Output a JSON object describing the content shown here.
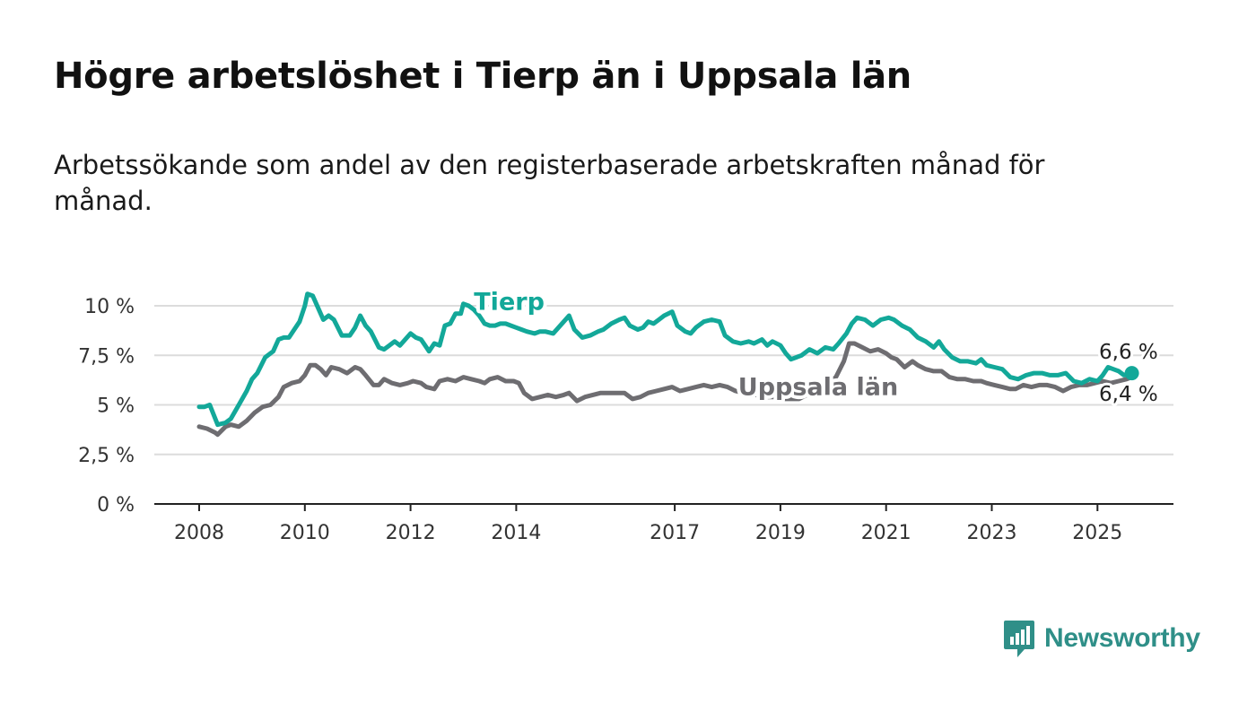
{
  "title": "Högre arbetslöshet i Tierp än i Uppsala län",
  "subtitle": "Arbetssökande som andel av den registerbaserade arbetskraften månad för månad.",
  "colors": {
    "tierp": "#13a899",
    "uppsala": "#6e6d71",
    "grid": "#dcdcdc",
    "axis": "#222222",
    "brand": "#2f8f88"
  },
  "logo": {
    "text": "Newsworthy",
    "icon": "chart-bubble-icon"
  },
  "chart_data": {
    "type": "line",
    "title": "Högre arbetslöshet i Tierp än i Uppsala län",
    "subtitle": "Arbetssökande som andel av den registerbaserade arbetskraften månad för månad.",
    "xlabel": "",
    "ylabel": "",
    "xlim": [
      2008,
      2025.7
    ],
    "ylim": [
      0,
      10
    ],
    "grid": true,
    "legend": "direct labels on lines",
    "y_ticks": [
      {
        "value": 0,
        "label": "0 %"
      },
      {
        "value": 2.5,
        "label": "2,5 %"
      },
      {
        "value": 5,
        "label": "5 %"
      },
      {
        "value": 7.5,
        "label": "7,5 %"
      },
      {
        "value": 10,
        "label": "10 %"
      }
    ],
    "x_ticks": [
      {
        "value": 2008,
        "label": "2008"
      },
      {
        "value": 2010,
        "label": "2010"
      },
      {
        "value": 2012,
        "label": "2012"
      },
      {
        "value": 2014,
        "label": "2014"
      },
      {
        "value": 2017,
        "label": "2017"
      },
      {
        "value": 2019,
        "label": "2019"
      },
      {
        "value": 2021,
        "label": "2021"
      },
      {
        "value": 2023,
        "label": "2023"
      },
      {
        "value": 2025,
        "label": "2025"
      }
    ],
    "series": [
      {
        "name": "Tierp",
        "label_at": [
          2013.2,
          9.8
        ],
        "end_label": "6,6 %",
        "points": [
          [
            2008.0,
            4.9
          ],
          [
            2008.1,
            4.9
          ],
          [
            2008.2,
            5.0
          ],
          [
            2008.35,
            4.0
          ],
          [
            2008.5,
            4.1
          ],
          [
            2008.6,
            4.3
          ],
          [
            2008.75,
            5.0
          ],
          [
            2008.9,
            5.7
          ],
          [
            2009.0,
            6.3
          ],
          [
            2009.1,
            6.6
          ],
          [
            2009.25,
            7.4
          ],
          [
            2009.4,
            7.7
          ],
          [
            2009.5,
            8.3
          ],
          [
            2009.6,
            8.4
          ],
          [
            2009.7,
            8.4
          ],
          [
            2009.8,
            8.8
          ],
          [
            2009.9,
            9.2
          ],
          [
            2010.0,
            10.0
          ],
          [
            2010.05,
            10.6
          ],
          [
            2010.15,
            10.5
          ],
          [
            2010.25,
            9.9
          ],
          [
            2010.35,
            9.3
          ],
          [
            2010.45,
            9.5
          ],
          [
            2010.55,
            9.3
          ],
          [
            2010.7,
            8.5
          ],
          [
            2010.85,
            8.5
          ],
          [
            2010.95,
            8.9
          ],
          [
            2011.05,
            9.5
          ],
          [
            2011.15,
            9.0
          ],
          [
            2011.25,
            8.7
          ],
          [
            2011.4,
            7.9
          ],
          [
            2011.5,
            7.8
          ],
          [
            2011.6,
            8.0
          ],
          [
            2011.7,
            8.2
          ],
          [
            2011.8,
            8.0
          ],
          [
            2011.9,
            8.3
          ],
          [
            2012.0,
            8.6
          ],
          [
            2012.1,
            8.4
          ],
          [
            2012.2,
            8.3
          ],
          [
            2012.3,
            7.9
          ],
          [
            2012.35,
            7.7
          ],
          [
            2012.45,
            8.1
          ],
          [
            2012.55,
            8.0
          ],
          [
            2012.65,
            9.0
          ],
          [
            2012.75,
            9.1
          ],
          [
            2012.85,
            9.6
          ],
          [
            2012.95,
            9.6
          ],
          [
            2013.0,
            10.1
          ],
          [
            2013.1,
            10.0
          ],
          [
            2013.2,
            9.8
          ],
          [
            2013.3,
            9.5
          ],
          [
            2013.4,
            9.1
          ],
          [
            2013.5,
            9.0
          ],
          [
            2013.6,
            9.0
          ],
          [
            2013.7,
            9.1
          ],
          [
            2013.8,
            9.1
          ],
          [
            2013.9,
            9.0
          ],
          [
            2014.0,
            8.9
          ],
          [
            2014.1,
            8.8
          ],
          [
            2014.2,
            8.7
          ],
          [
            2014.35,
            8.6
          ],
          [
            2014.45,
            8.7
          ],
          [
            2014.55,
            8.7
          ],
          [
            2014.7,
            8.6
          ],
          [
            2014.8,
            8.9
          ],
          [
            2014.9,
            9.2
          ],
          [
            2015.0,
            9.5
          ],
          [
            2015.1,
            8.8
          ],
          [
            2015.25,
            8.4
          ],
          [
            2015.4,
            8.5
          ],
          [
            2015.55,
            8.7
          ],
          [
            2015.65,
            8.8
          ],
          [
            2015.8,
            9.1
          ],
          [
            2015.95,
            9.3
          ],
          [
            2016.05,
            9.4
          ],
          [
            2016.15,
            9.0
          ],
          [
            2016.3,
            8.8
          ],
          [
            2016.4,
            8.9
          ],
          [
            2016.5,
            9.2
          ],
          [
            2016.6,
            9.1
          ],
          [
            2016.7,
            9.3
          ],
          [
            2016.8,
            9.5
          ],
          [
            2016.95,
            9.7
          ],
          [
            2017.05,
            9.0
          ],
          [
            2017.2,
            8.7
          ],
          [
            2017.3,
            8.6
          ],
          [
            2017.4,
            8.9
          ],
          [
            2017.55,
            9.2
          ],
          [
            2017.7,
            9.3
          ],
          [
            2017.85,
            9.2
          ],
          [
            2017.95,
            8.5
          ],
          [
            2018.1,
            8.2
          ],
          [
            2018.25,
            8.1
          ],
          [
            2018.4,
            8.2
          ],
          [
            2018.5,
            8.1
          ],
          [
            2018.65,
            8.3
          ],
          [
            2018.75,
            8.0
          ],
          [
            2018.85,
            8.2
          ],
          [
            2019.0,
            8.0
          ],
          [
            2019.1,
            7.6
          ],
          [
            2019.2,
            7.3
          ],
          [
            2019.3,
            7.4
          ],
          [
            2019.4,
            7.5
          ],
          [
            2019.55,
            7.8
          ],
          [
            2019.7,
            7.6
          ],
          [
            2019.85,
            7.9
          ],
          [
            2020.0,
            7.8
          ],
          [
            2020.1,
            8.1
          ],
          [
            2020.25,
            8.6
          ],
          [
            2020.35,
            9.1
          ],
          [
            2020.45,
            9.4
          ],
          [
            2020.6,
            9.3
          ],
          [
            2020.75,
            9.0
          ],
          [
            2020.9,
            9.3
          ],
          [
            2021.05,
            9.4
          ],
          [
            2021.15,
            9.3
          ],
          [
            2021.3,
            9.0
          ],
          [
            2021.45,
            8.8
          ],
          [
            2021.6,
            8.4
          ],
          [
            2021.75,
            8.2
          ],
          [
            2021.9,
            7.9
          ],
          [
            2022.0,
            8.2
          ],
          [
            2022.1,
            7.8
          ],
          [
            2022.25,
            7.4
          ],
          [
            2022.4,
            7.2
          ],
          [
            2022.55,
            7.2
          ],
          [
            2022.7,
            7.1
          ],
          [
            2022.8,
            7.3
          ],
          [
            2022.9,
            7.0
          ],
          [
            2023.05,
            6.9
          ],
          [
            2023.2,
            6.8
          ],
          [
            2023.35,
            6.4
          ],
          [
            2023.5,
            6.3
          ],
          [
            2023.65,
            6.5
          ],
          [
            2023.8,
            6.6
          ],
          [
            2023.95,
            6.6
          ],
          [
            2024.1,
            6.5
          ],
          [
            2024.25,
            6.5
          ],
          [
            2024.4,
            6.6
          ],
          [
            2024.55,
            6.2
          ],
          [
            2024.7,
            6.1
          ],
          [
            2024.85,
            6.3
          ],
          [
            2025.0,
            6.2
          ],
          [
            2025.1,
            6.5
          ],
          [
            2025.2,
            6.9
          ],
          [
            2025.3,
            6.8
          ],
          [
            2025.4,
            6.7
          ],
          [
            2025.5,
            6.5
          ],
          [
            2025.6,
            6.6
          ],
          [
            2025.65,
            6.6
          ]
        ]
      },
      {
        "name": "Uppsala län",
        "label_at": [
          2018.2,
          5.5
        ],
        "end_label": "6,4 %",
        "points": [
          [
            2008.0,
            3.9
          ],
          [
            2008.15,
            3.8
          ],
          [
            2008.3,
            3.6
          ],
          [
            2008.35,
            3.5
          ],
          [
            2008.5,
            3.9
          ],
          [
            2008.6,
            4.0
          ],
          [
            2008.75,
            3.9
          ],
          [
            2008.9,
            4.2
          ],
          [
            2009.05,
            4.6
          ],
          [
            2009.2,
            4.9
          ],
          [
            2009.35,
            5.0
          ],
          [
            2009.5,
            5.4
          ],
          [
            2009.6,
            5.9
          ],
          [
            2009.75,
            6.1
          ],
          [
            2009.9,
            6.2
          ],
          [
            2010.0,
            6.5
          ],
          [
            2010.1,
            7.0
          ],
          [
            2010.2,
            7.0
          ],
          [
            2010.3,
            6.8
          ],
          [
            2010.4,
            6.5
          ],
          [
            2010.5,
            6.9
          ],
          [
            2010.65,
            6.8
          ],
          [
            2010.8,
            6.6
          ],
          [
            2010.95,
            6.9
          ],
          [
            2011.05,
            6.8
          ],
          [
            2011.15,
            6.5
          ],
          [
            2011.3,
            6.0
          ],
          [
            2011.4,
            6.0
          ],
          [
            2011.5,
            6.3
          ],
          [
            2011.65,
            6.1
          ],
          [
            2011.8,
            6.0
          ],
          [
            2011.95,
            6.1
          ],
          [
            2012.05,
            6.2
          ],
          [
            2012.2,
            6.1
          ],
          [
            2012.3,
            5.9
          ],
          [
            2012.45,
            5.8
          ],
          [
            2012.55,
            6.2
          ],
          [
            2012.7,
            6.3
          ],
          [
            2012.85,
            6.2
          ],
          [
            2013.0,
            6.4
          ],
          [
            2013.15,
            6.3
          ],
          [
            2013.3,
            6.2
          ],
          [
            2013.4,
            6.1
          ],
          [
            2013.5,
            6.3
          ],
          [
            2013.65,
            6.4
          ],
          [
            2013.8,
            6.2
          ],
          [
            2013.95,
            6.2
          ],
          [
            2014.05,
            6.1
          ],
          [
            2014.15,
            5.6
          ],
          [
            2014.3,
            5.3
          ],
          [
            2014.45,
            5.4
          ],
          [
            2014.6,
            5.5
          ],
          [
            2014.75,
            5.4
          ],
          [
            2014.9,
            5.5
          ],
          [
            2015.0,
            5.6
          ],
          [
            2015.15,
            5.2
          ],
          [
            2015.3,
            5.4
          ],
          [
            2015.45,
            5.5
          ],
          [
            2015.6,
            5.6
          ],
          [
            2015.75,
            5.6
          ],
          [
            2015.9,
            5.6
          ],
          [
            2016.05,
            5.6
          ],
          [
            2016.2,
            5.3
          ],
          [
            2016.35,
            5.4
          ],
          [
            2016.5,
            5.6
          ],
          [
            2016.65,
            5.7
          ],
          [
            2016.8,
            5.8
          ],
          [
            2016.95,
            5.9
          ],
          [
            2017.1,
            5.7
          ],
          [
            2017.25,
            5.8
          ],
          [
            2017.4,
            5.9
          ],
          [
            2017.55,
            6.0
          ],
          [
            2017.7,
            5.9
          ],
          [
            2017.85,
            6.0
          ],
          [
            2018.0,
            5.9
          ],
          [
            2018.15,
            5.7
          ],
          [
            2018.3,
            5.6
          ],
          [
            2018.45,
            5.5
          ],
          [
            2018.6,
            5.5
          ],
          [
            2018.75,
            5.4
          ],
          [
            2018.9,
            5.4
          ],
          [
            2019.05,
            5.3
          ],
          [
            2019.2,
            5.3
          ],
          [
            2019.35,
            5.3
          ],
          [
            2019.5,
            5.5
          ],
          [
            2019.65,
            5.6
          ],
          [
            2019.8,
            5.9
          ],
          [
            2019.9,
            6.1
          ],
          [
            2020.05,
            6.4
          ],
          [
            2020.2,
            7.2
          ],
          [
            2020.3,
            8.1
          ],
          [
            2020.4,
            8.1
          ],
          [
            2020.55,
            7.9
          ],
          [
            2020.7,
            7.7
          ],
          [
            2020.85,
            7.8
          ],
          [
            2021.0,
            7.6
          ],
          [
            2021.1,
            7.4
          ],
          [
            2021.2,
            7.3
          ],
          [
            2021.35,
            6.9
          ],
          [
            2021.5,
            7.2
          ],
          [
            2021.6,
            7.0
          ],
          [
            2021.75,
            6.8
          ],
          [
            2021.9,
            6.7
          ],
          [
            2022.05,
            6.7
          ],
          [
            2022.2,
            6.4
          ],
          [
            2022.35,
            6.3
          ],
          [
            2022.5,
            6.3
          ],
          [
            2022.65,
            6.2
          ],
          [
            2022.8,
            6.2
          ],
          [
            2022.9,
            6.1
          ],
          [
            2023.05,
            6.0
          ],
          [
            2023.2,
            5.9
          ],
          [
            2023.35,
            5.8
          ],
          [
            2023.45,
            5.8
          ],
          [
            2023.6,
            6.0
          ],
          [
            2023.75,
            5.9
          ],
          [
            2023.9,
            6.0
          ],
          [
            2024.05,
            6.0
          ],
          [
            2024.2,
            5.9
          ],
          [
            2024.35,
            5.7
          ],
          [
            2024.5,
            5.9
          ],
          [
            2024.65,
            6.0
          ],
          [
            2024.8,
            6.0
          ],
          [
            2024.95,
            6.1
          ],
          [
            2025.1,
            6.2
          ],
          [
            2025.25,
            6.1
          ],
          [
            2025.4,
            6.2
          ],
          [
            2025.55,
            6.3
          ],
          [
            2025.65,
            6.4
          ]
        ]
      }
    ]
  }
}
